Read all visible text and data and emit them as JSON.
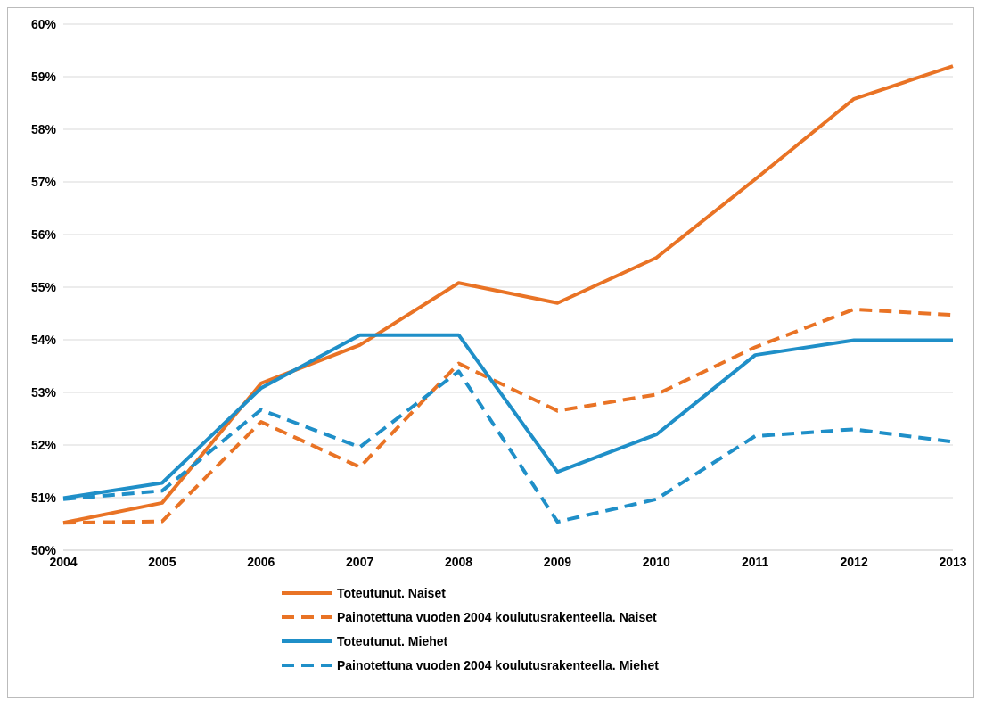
{
  "chart_data": {
    "type": "line",
    "categories": [
      "2004",
      "2005",
      "2006",
      "2007",
      "2008",
      "2009",
      "2010",
      "2011",
      "2012",
      "2013"
    ],
    "series": [
      {
        "name": "Toteutunut. Naiset",
        "color": "#e97325",
        "line_style": "solid",
        "values": [
          50.52,
          50.9,
          53.17,
          53.9,
          55.08,
          54.7,
          55.56,
          57.05,
          58.58,
          59.2
        ]
      },
      {
        "name": "Painotettuna vuoden 2004 koulutusrakenteella. Naiset",
        "color": "#e97325",
        "line_style": "dashed",
        "values": [
          50.52,
          50.55,
          52.44,
          51.58,
          53.55,
          52.65,
          52.96,
          53.86,
          54.58,
          54.47
        ]
      },
      {
        "name": "Toteutunut. Miehet",
        "color": "#1f8fc8",
        "line_style": "solid",
        "values": [
          50.99,
          51.28,
          53.08,
          54.09,
          54.09,
          51.49,
          52.2,
          53.71,
          53.99,
          53.99
        ]
      },
      {
        "name": "Painotettuna vuoden 2004 koulutusrakenteella. Miehet",
        "color": "#1f8fc8",
        "line_style": "dashed",
        "values": [
          50.97,
          51.13,
          52.67,
          51.96,
          53.4,
          50.54,
          50.97,
          52.17,
          52.3,
          52.06
        ]
      }
    ],
    "ylim": [
      50,
      60
    ],
    "yticks": [
      {
        "value": 50,
        "label": "50%"
      },
      {
        "value": 51,
        "label": "51%"
      },
      {
        "value": 52,
        "label": "52%"
      },
      {
        "value": 53,
        "label": "53%"
      },
      {
        "value": 54,
        "label": "54%"
      },
      {
        "value": 55,
        "label": "55%"
      },
      {
        "value": 56,
        "label": "56%"
      },
      {
        "value": 57,
        "label": "57%"
      },
      {
        "value": 58,
        "label": "58%"
      },
      {
        "value": 59,
        "label": "59%"
      },
      {
        "value": 60,
        "label": "60%"
      }
    ],
    "grid": "y",
    "legend": "bottom",
    "marker": "none"
  }
}
